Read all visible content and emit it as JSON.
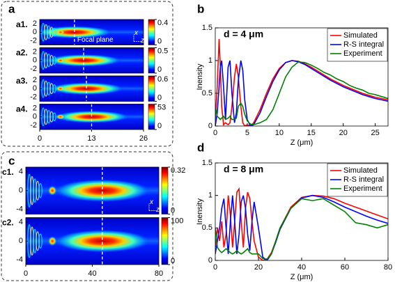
{
  "chart_data": [
    {
      "type": "heatmap",
      "label": "a",
      "xlim": [
        0,
        26
      ],
      "xticks": [
        0,
        13,
        26
      ],
      "annotation": "Focal plane",
      "axis_glyphs": [
        "x",
        "z"
      ],
      "panels": [
        {
          "label": "a1.",
          "ylim": [
            -3,
            3
          ],
          "yticks": [
            -2,
            0,
            2
          ],
          "clim": [
            0,
            0.4
          ],
          "cticks": [
            0,
            0.4
          ],
          "focal_plane": 8.7
        },
        {
          "label": "a2.",
          "ylim": [
            -3,
            3
          ],
          "yticks": [
            -2,
            0,
            2
          ],
          "clim": [
            0,
            0.5
          ],
          "cticks": [
            0,
            0.5
          ],
          "focal_plane": 11
        },
        {
          "label": "a3.",
          "ylim": [
            -3,
            3
          ],
          "yticks": [
            -2,
            0,
            2
          ],
          "clim": [
            0,
            0.6
          ],
          "cticks": [
            0,
            0.6
          ],
          "focal_plane": 11.7
        },
        {
          "label": "a4.",
          "ylim": [
            -3,
            3
          ],
          "yticks": [
            -2,
            0,
            2
          ],
          "clim": [
            0,
            53
          ],
          "cticks": [
            0,
            53
          ],
          "focal_plane": 13
        }
      ]
    },
    {
      "type": "line",
      "label": "b",
      "title": "d = 4 μm",
      "xlabel": "Z (μm)",
      "ylabel": "Inensity",
      "legend": "upper right",
      "xlim": [
        0,
        27
      ],
      "xticks": [
        0,
        5,
        10,
        15,
        20,
        25
      ],
      "ylim": [
        0,
        1.5
      ],
      "yticks": [
        0,
        0.5,
        1,
        1.5
      ],
      "x": [
        0,
        0.3,
        0.6,
        0.8,
        1,
        1.3,
        1.6,
        2,
        2.3,
        2.6,
        3,
        3.3,
        3.6,
        4,
        4.3,
        4.6,
        5,
        5.5,
        6,
        7,
        8,
        9,
        10,
        11,
        12,
        13,
        14,
        15,
        16,
        17,
        18,
        19,
        20,
        21,
        22,
        23,
        24,
        25,
        26,
        27
      ],
      "series": [
        {
          "name": "Simulated",
          "color": "#ff0000",
          "values": [
            0.1,
            0.6,
            1.33,
            0.9,
            0.3,
            0.02,
            0.05,
            0.02,
            0.05,
            0.3,
            0.75,
            0.95,
            0.75,
            0.3,
            0.05,
            0,
            0.02,
            0,
            0.05,
            0.25,
            0.5,
            0.72,
            0.88,
            0.97,
            1,
            0.99,
            0.95,
            0.9,
            0.84,
            0.78,
            0.72,
            0.67,
            0.62,
            0.58,
            0.54,
            0.5,
            0.47,
            0.44,
            0.42,
            0.4
          ]
        },
        {
          "name": "R-S integral",
          "color": "#0000ff",
          "values": [
            0,
            0.2,
            0.6,
            0.9,
            1,
            0.6,
            0.1,
            0.9,
            1,
            0.5,
            0.05,
            0.2,
            0.7,
            1,
            0.85,
            0.4,
            0.1,
            0,
            0.02,
            0.2,
            0.45,
            0.68,
            0.86,
            0.97,
            1,
            0.98,
            0.94,
            0.88,
            0.82,
            0.76,
            0.7,
            0.65,
            0.6,
            0.56,
            0.52,
            0.48,
            0.45,
            0.42,
            0.4,
            0.38
          ]
        },
        {
          "name": "Experiment",
          "color": "#008000",
          "values": [
            0.3,
            0.15,
            0.12,
            0.1,
            0.12,
            0.15,
            0.1,
            0.12,
            0.15,
            0.1,
            0.1,
            0.12,
            0.3,
            0.35,
            0.3,
            0.18,
            0.08,
            0.03,
            0.02,
            0.05,
            0.1,
            0.25,
            0.5,
            0.75,
            0.9,
            0.98,
            0.97,
            0.93,
            0.88,
            0.82,
            0.78,
            0.72,
            0.68,
            0.62,
            0.58,
            0.55,
            0.5,
            0.48,
            0.45,
            0.42
          ]
        }
      ]
    },
    {
      "type": "heatmap",
      "label": "c",
      "xlim": [
        0,
        80
      ],
      "xticks": [
        0,
        40,
        80
      ],
      "axis_glyphs": [
        "x",
        "z"
      ],
      "panels": [
        {
          "label": "c1.",
          "ylim": [
            -5,
            5
          ],
          "yticks": [
            -4,
            0,
            4
          ],
          "clim": [
            0,
            0.32
          ],
          "cticks": [
            0,
            0.32
          ],
          "focal_plane": 46
        },
        {
          "label": "c2.",
          "ylim": [
            -5,
            5
          ],
          "yticks": [
            -4,
            0,
            4
          ],
          "clim": [
            0,
            100
          ],
          "cticks": [
            0,
            100
          ],
          "focal_plane": 46
        }
      ]
    },
    {
      "type": "line",
      "label": "d",
      "title": "d = 8 μm",
      "xlabel": "Z (μm)",
      "ylabel": "Inensity",
      "legend": "upper right",
      "xlim": [
        0,
        80
      ],
      "xticks": [
        0,
        20,
        40,
        60,
        80
      ],
      "ylim": [
        0,
        1.5
      ],
      "yticks": [
        0,
        0.5,
        1,
        1.5
      ],
      "x": [
        0,
        1,
        2,
        3,
        4,
        5,
        6,
        7,
        8,
        9,
        10,
        11,
        12,
        13,
        14,
        15,
        16,
        17,
        18,
        20,
        22,
        24,
        26,
        28,
        30,
        35,
        40,
        45,
        50,
        55,
        60,
        65,
        70,
        75,
        80
      ],
      "series": [
        {
          "name": "Simulated",
          "color": "#ff0000",
          "values": [
            0.2,
            0.5,
            0.3,
            0.6,
            0.2,
            0.4,
            1,
            0.7,
            0.2,
            0.6,
            1.05,
            1.1,
            0.6,
            0.2,
            0.8,
            1.05,
            0.95,
            0.6,
            0.3,
            0.05,
            0,
            0.02,
            0.12,
            0.3,
            0.5,
            0.82,
            0.97,
            1,
            0.99,
            0.95,
            0.88,
            0.82,
            0.76,
            0.7,
            0.64
          ]
        },
        {
          "name": "R-S integral",
          "color": "#0000ff",
          "values": [
            0.1,
            0.3,
            0.5,
            0.8,
            0.95,
            0.5,
            0.1,
            0.6,
            1,
            0.6,
            0.1,
            0.4,
            0.9,
            1,
            0.8,
            0.4,
            0.15,
            0.6,
            0.9,
            0.5,
            0.05,
            0,
            0.1,
            0.28,
            0.48,
            0.8,
            0.96,
            1,
            0.97,
            0.9,
            0.82,
            0.75,
            0.68,
            0.62,
            0.57
          ]
        },
        {
          "name": "Experiment",
          "color": "#008000",
          "values": [
            0.5,
            0.2,
            0.15,
            0.12,
            0.15,
            0.18,
            0.15,
            0.12,
            0.1,
            0.12,
            0.15,
            0.12,
            0.1,
            0.12,
            0.15,
            0.18,
            0.12,
            0.1,
            0.1,
            0.1,
            0.03,
            0.02,
            0.1,
            0.3,
            0.5,
            0.8,
            0.95,
            0.92,
            0.95,
            0.85,
            0.75,
            0.58,
            0.55,
            0.5,
            0.55
          ]
        }
      ]
    }
  ]
}
